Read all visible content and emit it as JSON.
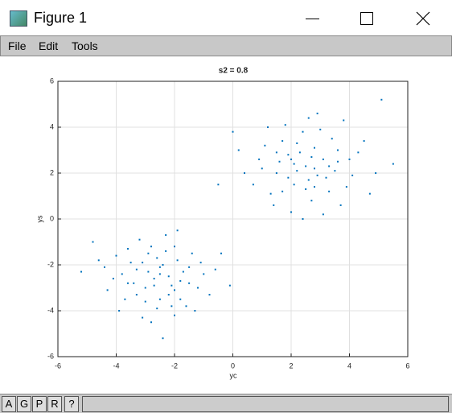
{
  "window": {
    "title": "Figure 1"
  },
  "menu": [
    "File",
    "Edit",
    "Tools"
  ],
  "toolbar": [
    "A",
    "G",
    "P",
    "R",
    "?"
  ],
  "chart_data": {
    "type": "scatter",
    "title": "s2 = 0.8",
    "xlabel": "yc",
    "ylabel": "ys",
    "color": "#0072bd",
    "grid": true,
    "xlim": [
      -6,
      6
    ],
    "ylim": [
      -6,
      6
    ],
    "xticks": [
      -6,
      -4,
      -2,
      0,
      2,
      4,
      6
    ],
    "yticks": [
      -6,
      -4,
      -2,
      0,
      2,
      4,
      6
    ],
    "x": [
      -2.5,
      -3.1,
      -1.8,
      -2.2,
      -3.4,
      -2.9,
      -1.5,
      -2.6,
      -4.1,
      -2.0,
      -3.7,
      -1.2,
      -2.4,
      -3.0,
      -2.7,
      -1.9,
      -3.3,
      -2.1,
      -4.6,
      -0.4,
      -2.8,
      -1.6,
      -3.6,
      -5.2,
      -2.3,
      -1.0,
      -3.9,
      -2.5,
      -3.2,
      -1.4,
      -2.0,
      -4.3,
      -0.8,
      -2.9,
      -2.2,
      -3.5,
      -1.7,
      -2.6,
      -3.0,
      -1.3,
      -4.8,
      -2.4,
      -0.1,
      -3.8,
      -2.0,
      -2.7,
      -1.1,
      -3.3,
      -4.0,
      -1.9,
      -2.3,
      -3.6,
      -1.5,
      -2.8,
      -0.6,
      -2.1,
      -3.1,
      -4.4,
      -1.8,
      -2.5,
      2.5,
      1.9,
      3.2,
      2.1,
      2.8,
      3.6,
      1.5,
      2.4,
      0.9,
      3.9,
      2.7,
      1.7,
      3.1,
      2.2,
      2.9,
      1.3,
      3.4,
      4.3,
      0.4,
      2.6,
      1.1,
      3.7,
      2.0,
      4.9,
      2.3,
      3.3,
      1.6,
      2.8,
      0.0,
      5.5,
      2.5,
      1.8,
      3.0,
      4.1,
      1.4,
      2.1,
      3.5,
      2.7,
      0.7,
      4.5,
      1.9,
      2.4,
      3.8,
      1.0,
      3.1,
      2.6,
      4.7,
      1.2,
      2.2,
      3.6,
      0.2,
      2.9,
      1.7,
      4.0,
      2.0,
      3.3,
      5.1,
      1.5,
      2.8,
      -0.5
    ],
    "values": [
      -2.4,
      -1.9,
      -2.7,
      -3.3,
      -2.8,
      -1.5,
      -2.1,
      -3.9,
      -2.6,
      -1.2,
      -3.5,
      -3.0,
      -2.0,
      -3.0,
      -2.6,
      -1.8,
      -2.2,
      -2.9,
      -1.8,
      -1.5,
      -4.5,
      -3.8,
      -1.3,
      -2.3,
      -0.7,
      -2.4,
      -4.0,
      -3.5,
      -0.9,
      -1.5,
      -4.2,
      -3.1,
      -3.3,
      -2.3,
      -2.5,
      -1.9,
      -2.3,
      -1.7,
      -3.6,
      -4.0,
      -1.0,
      -5.2,
      -2.9,
      -2.4,
      -3.1,
      -2.9,
      -1.9,
      -3.3,
      -1.6,
      -0.5,
      -1.4,
      -2.8,
      -2.8,
      -1.2,
      -2.2,
      -3.8,
      -4.3,
      -2.1,
      -3.5,
      -2.1,
      2.3,
      2.8,
      1.8,
      1.5,
      3.1,
      2.5,
      2.0,
      3.8,
      2.6,
      1.4,
      0.8,
      3.4,
      2.6,
      2.1,
      1.9,
      1.1,
      3.5,
      2.9,
      2.0,
      4.4,
      3.2,
      0.6,
      0.3,
      2.0,
      2.9,
      1.2,
      2.5,
      2.2,
      3.8,
      2.4,
      1.3,
      4.1,
      3.9,
      1.9,
      0.6,
      2.4,
      2.1,
      2.7,
      1.5,
      3.4,
      1.8,
      0.0,
      4.3,
      2.2,
      0.2,
      1.7,
      1.1,
      4.0,
      3.3,
      3.0,
      3.0,
      4.6,
      1.2,
      2.6,
      2.6,
      2.3,
      5.2,
      2.9,
      1.4,
      1.5
    ]
  }
}
